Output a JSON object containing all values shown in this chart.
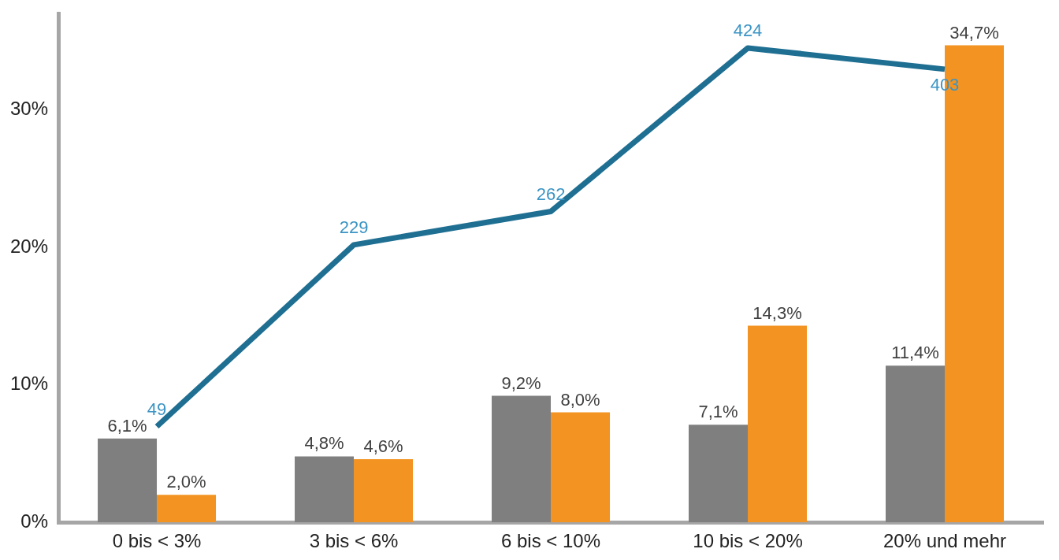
{
  "chart_data": {
    "type": "bar",
    "categories": [
      "0 bis < 3%",
      "3 bis < 6%",
      "6 bis < 10%",
      "10 bis < 20%",
      "20% und mehr"
    ],
    "series": [
      {
        "color": "#7f7f7f",
        "values": [
          6.1,
          4.8,
          9.2,
          7.1,
          11.4
        ],
        "value_labels": [
          "6,1%",
          "4,8%",
          "9,2%",
          "7,1%",
          "11,4%"
        ]
      },
      {
        "color": "#f39322",
        "values": [
          2.0,
          4.6,
          8.0,
          14.3,
          34.7
        ],
        "value_labels": [
          "2,0%",
          "4,6%",
          "8,0%",
          "14,3%",
          "34,7%"
        ]
      },
      {
        "type": "line",
        "axis": "y2",
        "color": "#1f6f92",
        "values": [
          49,
          229,
          262,
          424,
          403
        ],
        "value_labels": [
          "49",
          "229",
          "262",
          "424",
          "403"
        ]
      }
    ],
    "ylim": [
      0,
      37
    ],
    "yticks": [
      {
        "value": 0,
        "label": "0%"
      },
      {
        "value": 10,
        "label": "10%"
      },
      {
        "value": 20,
        "label": "20%"
      },
      {
        "value": 30,
        "label": "30%"
      }
    ],
    "y2lim": [
      -46,
      458
    ],
    "tick_labels": "xy",
    "grid": false,
    "legend": false,
    "marker": "none",
    "line_style": "solid"
  }
}
